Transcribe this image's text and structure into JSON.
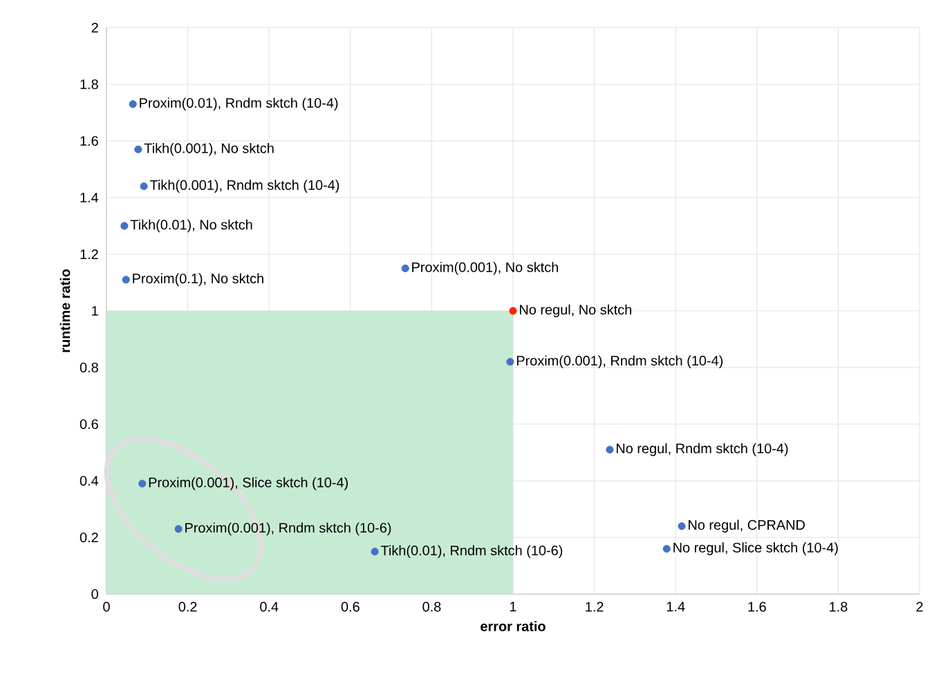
{
  "chart_data": {
    "type": "scatter",
    "xlabel": "error ratio",
    "ylabel": "runtime ratio",
    "xlim": [
      0,
      2
    ],
    "ylim": [
      0,
      2
    ],
    "xticks": [
      0,
      0.2,
      0.4,
      0.6,
      0.8,
      1,
      1.2,
      1.4,
      1.6,
      1.8,
      2
    ],
    "yticks": [
      0,
      0.2,
      0.4,
      0.6,
      0.8,
      1,
      1.2,
      1.4,
      1.6,
      1.8,
      2
    ],
    "grid": true,
    "marker": "circle",
    "series": [
      {
        "type": "area",
        "marker": "none",
        "color": "#c6ebd3",
        "x": [
          0,
          1
        ],
        "values": [
          1,
          1
        ]
      },
      {
        "color": "#4472c4",
        "x": [
          0.065,
          0.078,
          0.092,
          0.044,
          0.048,
          0.735,
          0.993,
          1.238,
          1.415,
          1.378,
          0.088,
          0.177,
          0.66
        ],
        "values": [
          1.73,
          1.57,
          1.44,
          1.3,
          1.11,
          1.15,
          0.82,
          0.51,
          0.24,
          0.16,
          0.39,
          0.23,
          0.15
        ]
      },
      {
        "color": "#ff2600",
        "x": [
          1
        ],
        "values": [
          1
        ]
      }
    ],
    "annotations": [
      {
        "text": "Proxim(0.01), Rndm sktch (10-4)",
        "x": 0.065,
        "y": 1.73
      },
      {
        "text": "Tikh(0.001), No sktch",
        "x": 0.078,
        "y": 1.57
      },
      {
        "text": "Tikh(0.001), Rndm sktch (10-4)",
        "x": 0.092,
        "y": 1.44
      },
      {
        "text": "Tikh(0.01), No sktch",
        "x": 0.044,
        "y": 1.3
      },
      {
        "text": "Proxim(0.1), No sktch",
        "x": 0.048,
        "y": 1.11
      },
      {
        "text": "Proxim(0.001), No sktch",
        "x": 0.735,
        "y": 1.15
      },
      {
        "text": "No regul, No sktch",
        "x": 1,
        "y": 1
      },
      {
        "text": "Proxim(0.001), Rndm sktch (10-4)",
        "x": 0.993,
        "y": 0.82
      },
      {
        "text": "No regul, Rndm sktch (10-4)",
        "x": 1.238,
        "y": 0.51
      },
      {
        "text": "No regul, CPRAND",
        "x": 1.415,
        "y": 0.24
      },
      {
        "text": "No regul, Slice sktch (10-4)",
        "x": 1.378,
        "y": 0.16
      },
      {
        "text": "Proxim(0.001), Slice sktch (10-4)",
        "x": 0.088,
        "y": 0.39
      },
      {
        "text": "Proxim(0.001), Rndm sktch (10-6)",
        "x": 0.177,
        "y": 0.23
      },
      {
        "text": "Tikh(0.01), Rndm sktch (10-6)",
        "x": 0.66,
        "y": 0.15
      }
    ]
  }
}
